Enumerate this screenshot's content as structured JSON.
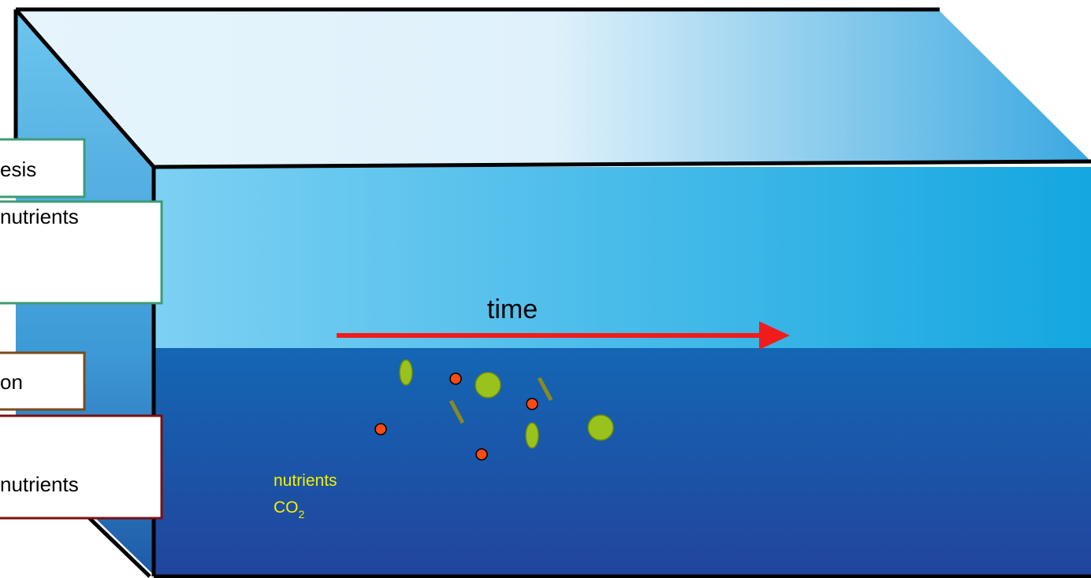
{
  "boxes": [
    {
      "text": "esis"
    },
    {
      "text": "nutrients"
    },
    {
      "text": "on"
    },
    {
      "text": "nutrients"
    }
  ],
  "arrow_label": "time",
  "water_labels": {
    "nutrients": "nutrients",
    "co2": {
      "base": "CO",
      "subscript": "2"
    }
  }
}
